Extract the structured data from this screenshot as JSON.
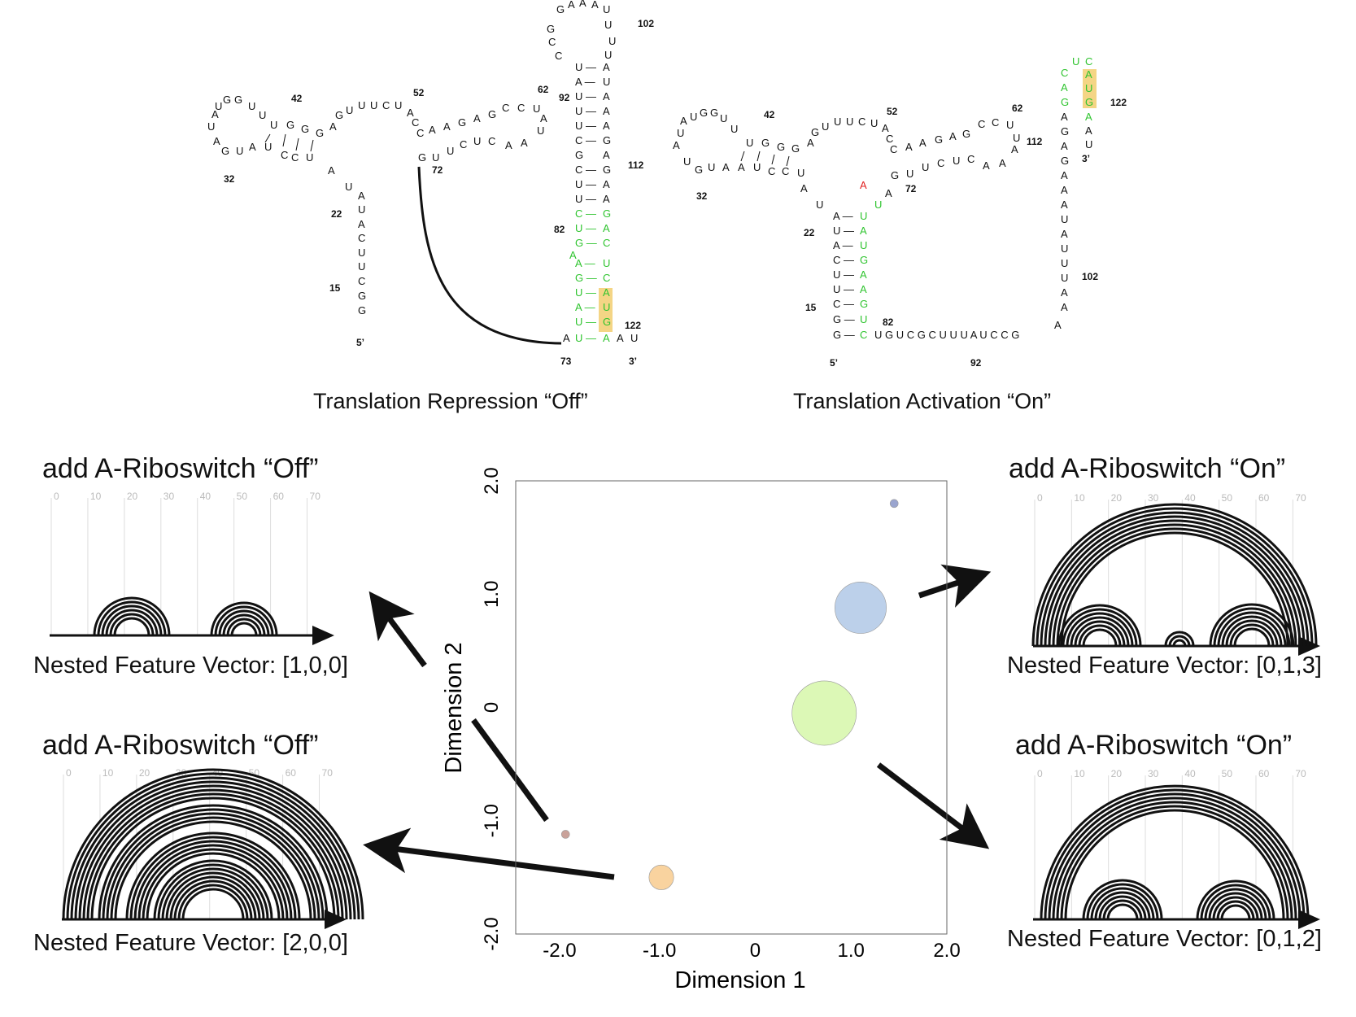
{
  "structures": {
    "off": {
      "caption": "Translation Repression “Off”",
      "nt_numbers": [
        "42",
        "52",
        "62",
        "102",
        "92",
        "112",
        "32",
        "72",
        "22",
        "82",
        "15",
        "122",
        "5’",
        "73",
        "3’"
      ]
    },
    "on": {
      "caption": "Translation Activation “On”",
      "nt_numbers": [
        "42",
        "52",
        "62",
        "122",
        "112",
        "32",
        "72",
        "22",
        "102",
        "15",
        "82",
        "5’",
        "92",
        "3’"
      ]
    }
  },
  "panels": {
    "top_left": {
      "title": "add A-Riboswitch “Off”",
      "vector": "Nested Feature Vector: [1,0,0]",
      "ticks": [
        "0",
        "10",
        "20",
        "30",
        "40",
        "50",
        "60",
        "70"
      ]
    },
    "bottom_left": {
      "title": "add A-Riboswitch “Off”",
      "vector": "Nested Feature Vector: [2,0,0]",
      "ticks": [
        "0",
        "10",
        "20",
        "30",
        "40",
        "50",
        "60",
        "70"
      ]
    },
    "top_right": {
      "title": "add A-Riboswitch “On”",
      "vector": "Nested Feature Vector: [0,1,3]",
      "ticks": [
        "0",
        "10",
        "20",
        "30",
        "40",
        "50",
        "60",
        "70"
      ]
    },
    "bottom_right": {
      "title": "add A-Riboswitch “On”",
      "vector": "Nested Feature Vector: [0,1,2]",
      "ticks": [
        "0",
        "10",
        "20",
        "30",
        "40",
        "50",
        "60",
        "70"
      ]
    }
  },
  "chart_data": {
    "type": "scatter",
    "xlabel": "Dimension 1",
    "ylabel": "Dimension 2",
    "xlim": [
      -2.5,
      2.0
    ],
    "ylim": [
      -2.0,
      2.0
    ],
    "x_ticks": [
      "-2.0",
      "-1.0",
      "0",
      "1.0",
      "2.0"
    ],
    "y_ticks": [
      "2.0",
      "1.0",
      "0",
      "-1.0",
      "-2.0"
    ],
    "points": [
      {
        "x": 1.45,
        "y": 1.8,
        "size": 0.06,
        "color": "#9aa5cf"
      },
      {
        "x": 1.1,
        "y": 0.88,
        "size": 0.48,
        "color": "#bcd0ea"
      },
      {
        "x": 0.72,
        "y": -0.05,
        "size": 0.6,
        "color": "#dcf8b6"
      },
      {
        "x": -0.98,
        "y": -1.5,
        "size": 0.23,
        "color": "#f9d39f"
      },
      {
        "x": -1.98,
        "y": -1.12,
        "size": 0.04,
        "color": "#c9a29a"
      }
    ]
  },
  "colors": {
    "green": "#2fc42f",
    "red": "#e02020",
    "highlight": "#f4d585"
  }
}
